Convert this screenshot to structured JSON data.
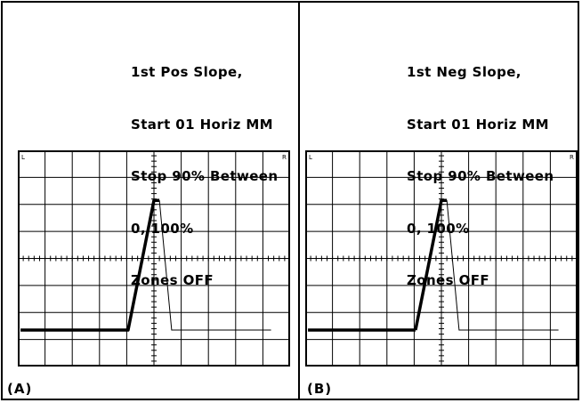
{
  "panels": [
    {
      "label": "(A)",
      "caption": [
        "1st Pos Slope,",
        "Start 01 Horiz MM",
        "Stop 90% Between",
        "0, 100%",
        "Zones OFF"
      ],
      "corner_left": "L",
      "corner_right": "R",
      "measured_slope": "rising"
    },
    {
      "label": "(B)",
      "caption": [
        "1st Neg Slope,",
        "Start 01 Horiz MM",
        "Stop 90% Between",
        "0, 100%",
        "Zones OFF"
      ],
      "corner_left": "L",
      "corner_right": "R",
      "measured_slope": "falling"
    }
  ],
  "graticule": {
    "columns": 10,
    "rows": 8
  },
  "colors": {
    "trace": "#000000",
    "grid": "#000000",
    "background": "#ffffff"
  }
}
